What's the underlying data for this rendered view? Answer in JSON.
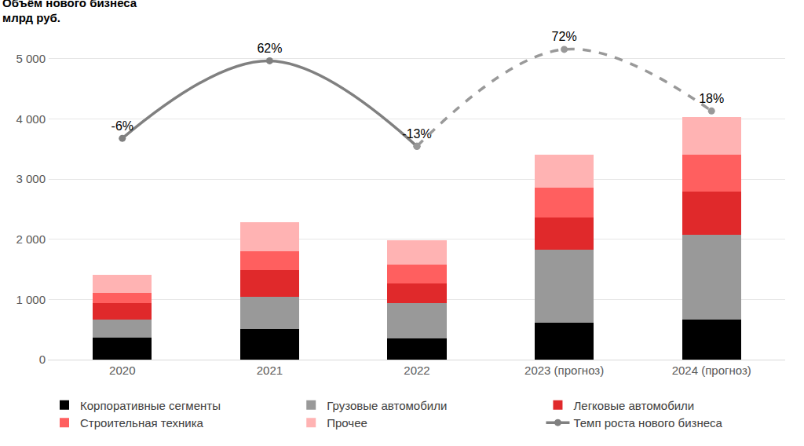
{
  "chart_data": {
    "type": "bar",
    "title": "Объём нового бизнеса",
    "subtitle": "млрд руб.",
    "stacked": true,
    "grid": true,
    "legend": "bottom",
    "categories": [
      "2020",
      "2021",
      "2022",
      "2023 (прогноз)",
      "2024 (прогноз)"
    ],
    "ylim": [
      0,
      5400
    ],
    "yticks": [
      0,
      {
        "value": 1000,
        "label": "1 000"
      },
      {
        "value": 2000,
        "label": "2 000"
      },
      {
        "value": 3000,
        "label": "3 000"
      },
      {
        "value": 4000,
        "label": "4 000"
      },
      {
        "value": 5000,
        "label": "5 000"
      }
    ],
    "y2lim": [
      -200,
      85
    ],
    "y2ticks": [],
    "series": [
      {
        "name": "Корпоративные сегменты",
        "color": "#000000",
        "values": [
          370,
          510,
          350,
          610,
          670
        ]
      },
      {
        "name": "Грузовые автомобили",
        "color": "#999999",
        "values": [
          300,
          530,
          590,
          1210,
          1400
        ]
      },
      {
        "name": "Легковые автомобили",
        "color": "#e0292b",
        "values": [
          270,
          450,
          330,
          540,
          720
        ]
      },
      {
        "name": "Строительная техника",
        "color": "#ff5f5f",
        "values": [
          170,
          310,
          310,
          500,
          610
        ]
      },
      {
        "name": "Прочее",
        "color": "#ffb3b3",
        "values": [
          300,
          480,
          400,
          550,
          630
        ]
      },
      {
        "name": "Темп роста нового бизнеса",
        "type": "line",
        "axis": "y2",
        "color": "#808080",
        "marker": "circle",
        "line_style": "solid",
        "data_labels": true,
        "values": [
          -6,
          62,
          -13,
          null,
          null
        ],
        "value_labels": [
          "-6%",
          "62%",
          "-13%",
          null,
          null
        ]
      },
      {
        "name": "Темп роста нового бизнеса",
        "type": "line",
        "axis": "y2",
        "color": "#999999",
        "marker": "circle",
        "line_style": "dashed",
        "data_labels": true,
        "values": [
          null,
          null,
          -13,
          72,
          18
        ],
        "value_labels": [
          null,
          null,
          "-13%",
          "72%",
          "18%"
        ]
      }
    ]
  }
}
